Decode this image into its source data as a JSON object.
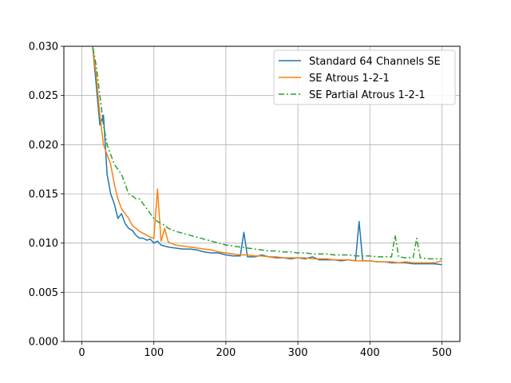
{
  "chart_data": {
    "type": "line",
    "title": "",
    "xlabel": "",
    "ylabel": "",
    "xlim": [
      -25,
      525
    ],
    "ylim": [
      0.0,
      0.03
    ],
    "xticks": [
      0,
      100,
      200,
      300,
      400,
      500
    ],
    "yticks": [
      0.0,
      0.005,
      0.01,
      0.015,
      0.02,
      0.025,
      0.03
    ],
    "xtick_labels": [
      "0",
      "100",
      "200",
      "300",
      "400",
      "500"
    ],
    "ytick_labels": [
      "0.000",
      "0.005",
      "0.010",
      "0.015",
      "0.020",
      "0.025",
      "0.030"
    ],
    "grid": true,
    "legend_position": "top-right",
    "series": [
      {
        "name": "Standard 64 Channels SE",
        "color": "#1f77b4",
        "style": "solid",
        "x": [
          10,
          15,
          20,
          25,
          30,
          35,
          40,
          45,
          50,
          55,
          60,
          65,
          70,
          75,
          80,
          85,
          90,
          95,
          100,
          105,
          110,
          115,
          120,
          130,
          140,
          150,
          160,
          170,
          180,
          190,
          200,
          210,
          220,
          225,
          230,
          240,
          250,
          260,
          270,
          280,
          290,
          300,
          310,
          320,
          330,
          340,
          350,
          360,
          370,
          380,
          385,
          390,
          400,
          410,
          420,
          430,
          440,
          450,
          460,
          470,
          480,
          490,
          500
        ],
        "y": [
          0.031,
          0.03,
          0.026,
          0.022,
          0.023,
          0.017,
          0.015,
          0.014,
          0.0125,
          0.013,
          0.012,
          0.0115,
          0.0113,
          0.0108,
          0.0105,
          0.0105,
          0.0103,
          0.0104,
          0.01,
          0.0102,
          0.0098,
          0.0097,
          0.0096,
          0.0095,
          0.0094,
          0.0094,
          0.0093,
          0.0091,
          0.009,
          0.009,
          0.0088,
          0.0087,
          0.0087,
          0.0111,
          0.0086,
          0.0086,
          0.0088,
          0.0086,
          0.0085,
          0.0085,
          0.0084,
          0.0085,
          0.0084,
          0.0086,
          0.0083,
          0.0083,
          0.0083,
          0.0082,
          0.0083,
          0.0082,
          0.0122,
          0.0082,
          0.0082,
          0.0081,
          0.0081,
          0.008,
          0.008,
          0.008,
          0.0079,
          0.0079,
          0.0079,
          0.0079,
          0.0078
        ]
      },
      {
        "name": "SE  Atrous 1-2-1",
        "color": "#ff7f0e",
        "style": "solid",
        "x": [
          10,
          15,
          20,
          25,
          30,
          35,
          40,
          45,
          50,
          55,
          60,
          65,
          70,
          75,
          80,
          85,
          90,
          95,
          100,
          105,
          110,
          115,
          120,
          130,
          140,
          150,
          160,
          170,
          180,
          190,
          200,
          210,
          220,
          230,
          240,
          250,
          260,
          270,
          280,
          290,
          300,
          310,
          320,
          330,
          340,
          350,
          360,
          370,
          380,
          390,
          400,
          410,
          420,
          430,
          440,
          450,
          460,
          470,
          480,
          490,
          500
        ],
        "y": [
          0.031,
          0.03,
          0.027,
          0.023,
          0.02,
          0.019,
          0.018,
          0.016,
          0.0145,
          0.0135,
          0.013,
          0.0125,
          0.0118,
          0.0115,
          0.0112,
          0.011,
          0.0108,
          0.0106,
          0.0105,
          0.0155,
          0.0102,
          0.0115,
          0.0101,
          0.0098,
          0.0097,
          0.0096,
          0.0095,
          0.0094,
          0.0093,
          0.0091,
          0.009,
          0.0089,
          0.0088,
          0.0088,
          0.0087,
          0.0087,
          0.0086,
          0.0086,
          0.0085,
          0.0085,
          0.0085,
          0.0085,
          0.0084,
          0.0084,
          0.0084,
          0.0083,
          0.0083,
          0.0083,
          0.0082,
          0.0082,
          0.0082,
          0.0081,
          0.0081,
          0.0081,
          0.008,
          0.0081,
          0.008,
          0.008,
          0.008,
          0.008,
          0.0082
        ]
      },
      {
        "name": "SE Partial Atrous 1-2-1",
        "color": "#2ca02c",
        "style": "dashdot",
        "x": [
          10,
          15,
          20,
          25,
          30,
          35,
          40,
          45,
          50,
          55,
          60,
          65,
          70,
          75,
          80,
          85,
          90,
          95,
          100,
          105,
          110,
          115,
          120,
          130,
          140,
          150,
          160,
          170,
          180,
          190,
          200,
          210,
          220,
          230,
          240,
          250,
          260,
          270,
          280,
          290,
          300,
          310,
          320,
          330,
          340,
          350,
          360,
          370,
          380,
          390,
          400,
          410,
          420,
          430,
          435,
          440,
          450,
          460,
          465,
          470,
          480,
          490,
          500
        ],
        "y": [
          0.031,
          0.03,
          0.028,
          0.025,
          0.022,
          0.02,
          0.019,
          0.018,
          0.0175,
          0.017,
          0.016,
          0.015,
          0.0148,
          0.0145,
          0.0145,
          0.014,
          0.0135,
          0.013,
          0.0125,
          0.0122,
          0.012,
          0.0118,
          0.0115,
          0.0112,
          0.011,
          0.0108,
          0.0106,
          0.0104,
          0.0102,
          0.01,
          0.0098,
          0.0097,
          0.0096,
          0.0095,
          0.0094,
          0.0093,
          0.0092,
          0.0092,
          0.0091,
          0.0091,
          0.009,
          0.009,
          0.0089,
          0.0089,
          0.0089,
          0.0088,
          0.0088,
          0.0088,
          0.0087,
          0.0087,
          0.0087,
          0.0086,
          0.0086,
          0.0086,
          0.0108,
          0.0086,
          0.0085,
          0.0085,
          0.0105,
          0.0085,
          0.0084,
          0.0084,
          0.0084
        ]
      }
    ]
  }
}
